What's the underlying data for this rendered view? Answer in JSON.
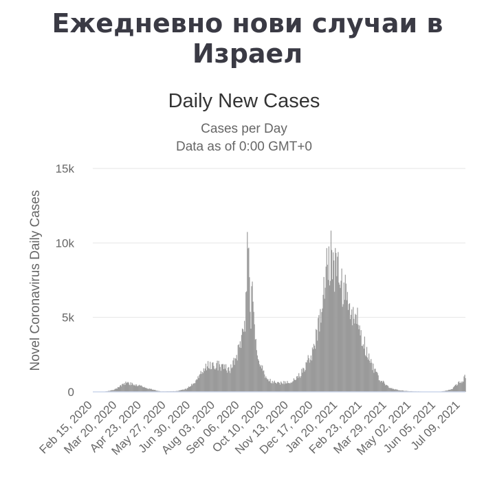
{
  "page_title": "Ежедневно нови случаи в Израел",
  "colors": {
    "bar": "#9a9a9a",
    "grid": "#e6e6e6",
    "axis": "#ccd6eb"
  },
  "chart_data": {
    "type": "bar",
    "title": "Daily New Cases",
    "subtitle_lines": [
      "Cases per Day",
      "Data as of 0:00 GMT+0"
    ],
    "ylabel": "Novel Coronavirus Daily Cases",
    "xlabel": "",
    "ylim": [
      0,
      15000
    ],
    "y_ticks": [
      0,
      5000,
      10000,
      15000
    ],
    "y_tick_labels": [
      "0",
      "5k",
      "10k",
      "15k"
    ],
    "x_range": [
      "2020-02-15",
      "2021-07-20"
    ],
    "x_tick_labels": [
      "Feb 15, 2020",
      "Mar 20, 2020",
      "Apr 23, 2020",
      "May 27, 2020",
      "Jun 30, 2020",
      "Aug 03, 2020",
      "Sep 06, 2020",
      "Oct 10, 2020",
      "Nov 13, 2020",
      "Dec 17, 2020",
      "Jan 20, 2021",
      "Feb 23, 2021",
      "Mar 29, 2021",
      "May 02, 2021",
      "Jun 05, 2021",
      "Jul 09, 2021"
    ],
    "grid": true,
    "legend": "none",
    "x_dates": [
      "2020-02-15",
      "2020-03-01",
      "2020-03-15",
      "2020-03-25",
      "2020-04-01",
      "2020-04-10",
      "2020-04-20",
      "2020-05-01",
      "2020-05-20",
      "2020-06-10",
      "2020-06-25",
      "2020-07-05",
      "2020-07-15",
      "2020-07-25",
      "2020-08-05",
      "2020-08-15",
      "2020-08-25",
      "2020-09-02",
      "2020-09-08",
      "2020-09-12",
      "2020-09-15",
      "2020-09-17",
      "2020-09-19",
      "2020-09-21",
      "2020-09-23",
      "2020-09-25",
      "2020-09-28",
      "2020-10-01",
      "2020-10-05",
      "2020-10-10",
      "2020-10-15",
      "2020-10-22",
      "2020-11-01",
      "2020-11-10",
      "2020-11-20",
      "2020-12-01",
      "2020-12-10",
      "2020-12-20",
      "2020-12-27",
      "2021-01-01",
      "2021-01-05",
      "2021-01-08",
      "2021-01-11",
      "2021-01-14",
      "2021-01-18",
      "2021-01-22",
      "2021-01-26",
      "2021-02-01",
      "2021-02-06",
      "2021-02-12",
      "2021-02-18",
      "2021-02-24",
      "2021-03-03",
      "2021-03-10",
      "2021-03-20",
      "2021-04-01",
      "2021-04-10",
      "2021-04-20",
      "2021-05-01",
      "2021-05-15",
      "2021-06-01",
      "2021-06-15",
      "2021-06-25",
      "2021-07-01",
      "2021-07-05",
      "2021-07-10",
      "2021-07-15",
      "2021-07-20"
    ],
    "values": [
      0,
      10,
      120,
      400,
      600,
      550,
      450,
      250,
      30,
      50,
      200,
      600,
      1300,
      1800,
      1900,
      1700,
      1500,
      2500,
      3000,
      4000,
      5000,
      8000,
      11300,
      9000,
      4000,
      8500,
      4000,
      2700,
      2000,
      1500,
      900,
      700,
      600,
      650,
      700,
      1200,
      2000,
      3000,
      4500,
      6000,
      8000,
      9800,
      9000,
      10000,
      8500,
      8800,
      7500,
      7000,
      6000,
      5000,
      5100,
      4000,
      3000,
      2000,
      1000,
      400,
      200,
      100,
      50,
      30,
      10,
      20,
      100,
      200,
      400,
      600,
      700,
      1100
    ]
  }
}
